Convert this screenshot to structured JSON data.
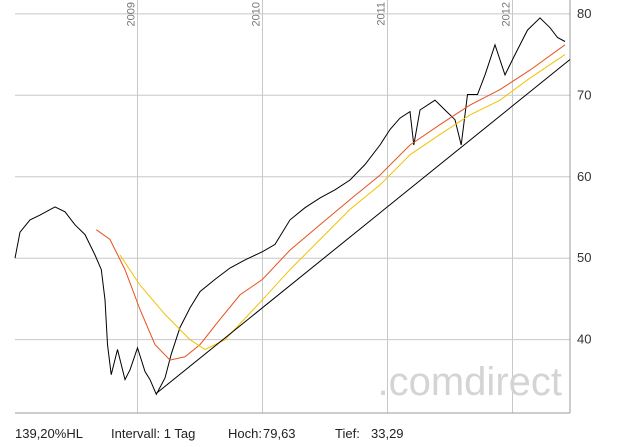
{
  "chart_data": {
    "type": "line",
    "xlim": [
      2008.02,
      2012.46
    ],
    "xticks": [
      2009,
      2010,
      2011,
      2012
    ],
    "ylim": [
      31,
      81.7
    ],
    "yticks": [
      40,
      50,
      60,
      70,
      80
    ],
    "grid": true,
    "series": [
      {
        "color": "#000000",
        "x": [
          2008.02,
          2008.06,
          2008.14,
          2008.22,
          2008.34,
          2008.42,
          2008.5,
          2008.58,
          2008.66,
          2008.71,
          2008.74,
          2008.76,
          2008.79,
          2008.84,
          2008.9,
          2008.94,
          2009.0,
          2009.06,
          2009.1,
          2009.15,
          2009.22,
          2009.27,
          2009.34,
          2009.42,
          2009.5,
          2009.62,
          2009.74,
          2009.86,
          2010.0,
          2010.1,
          2010.22,
          2010.34,
          2010.46,
          2010.58,
          2010.7,
          2010.82,
          2010.94,
          2011.02,
          2011.1,
          2011.18,
          2011.21,
          2011.26,
          2011.38,
          2011.46,
          2011.54,
          2011.59,
          2011.64,
          2011.72,
          2011.78,
          2011.86,
          2011.94,
          2012.02,
          2012.12,
          2012.22,
          2012.3,
          2012.36,
          2012.42
        ],
        "values": [
          50,
          53.2,
          54.7,
          55.3,
          56.3,
          55.7,
          54.1,
          52.9,
          50.4,
          48.6,
          44.9,
          39.4,
          35.7,
          38.8,
          35.1,
          36.3,
          39.0,
          36.1,
          35.1,
          33.3,
          35.3,
          38.2,
          41.5,
          43.9,
          45.9,
          47.4,
          48.8,
          49.8,
          50.8,
          51.7,
          54.7,
          56.2,
          57.4,
          58.4,
          59.6,
          61.5,
          63.9,
          65.8,
          67.2,
          68.0,
          63.9,
          68.2,
          69.4,
          68.2,
          67.0,
          63.9,
          70.1,
          70.1,
          72.5,
          76.2,
          72.5,
          75.0,
          78.0,
          79.5,
          78.3,
          77.1,
          76.6
        ]
      },
      {
        "color": "#e8501e",
        "x": [
          2008.67,
          2008.78,
          2008.9,
          2009.02,
          2009.14,
          2009.26,
          2009.38,
          2009.5,
          2009.66,
          2009.82,
          2010.0,
          2010.22,
          2010.46,
          2010.7,
          2010.94,
          2011.18,
          2011.42,
          2011.66,
          2011.9,
          2012.14,
          2012.42
        ],
        "values": [
          53.5,
          52.3,
          48.6,
          43.7,
          39.4,
          37.5,
          37.9,
          39.4,
          42.5,
          45.5,
          47.4,
          51.0,
          54.1,
          57.2,
          60.2,
          63.9,
          66.4,
          68.8,
          70.7,
          73.1,
          76.2
        ]
      },
      {
        "color": "#f2c200",
        "x": [
          2008.86,
          2009.02,
          2009.22,
          2009.42,
          2009.54,
          2009.7,
          2010.0,
          2010.22,
          2010.46,
          2010.7,
          2010.94,
          2011.18,
          2011.42,
          2011.66,
          2011.9,
          2012.12,
          2012.42
        ],
        "values": [
          50.4,
          46.7,
          43.1,
          40.0,
          38.8,
          40.0,
          44.9,
          48.6,
          52.3,
          56.0,
          59.0,
          62.7,
          65.2,
          67.6,
          69.4,
          71.9,
          75.0
        ]
      },
      {
        "color": "#000000",
        "x": [
          2009.15,
          2012.46
        ],
        "values": [
          33.4,
          74.4
        ]
      }
    ],
    "watermark": ".comdirect"
  },
  "footer": {
    "hl": "139,20%HL",
    "interval": "Intervall: 1 Tag",
    "high_label": "Hoch:",
    "high": "79,63",
    "low_label": "Tief:",
    "low": "33,29"
  }
}
